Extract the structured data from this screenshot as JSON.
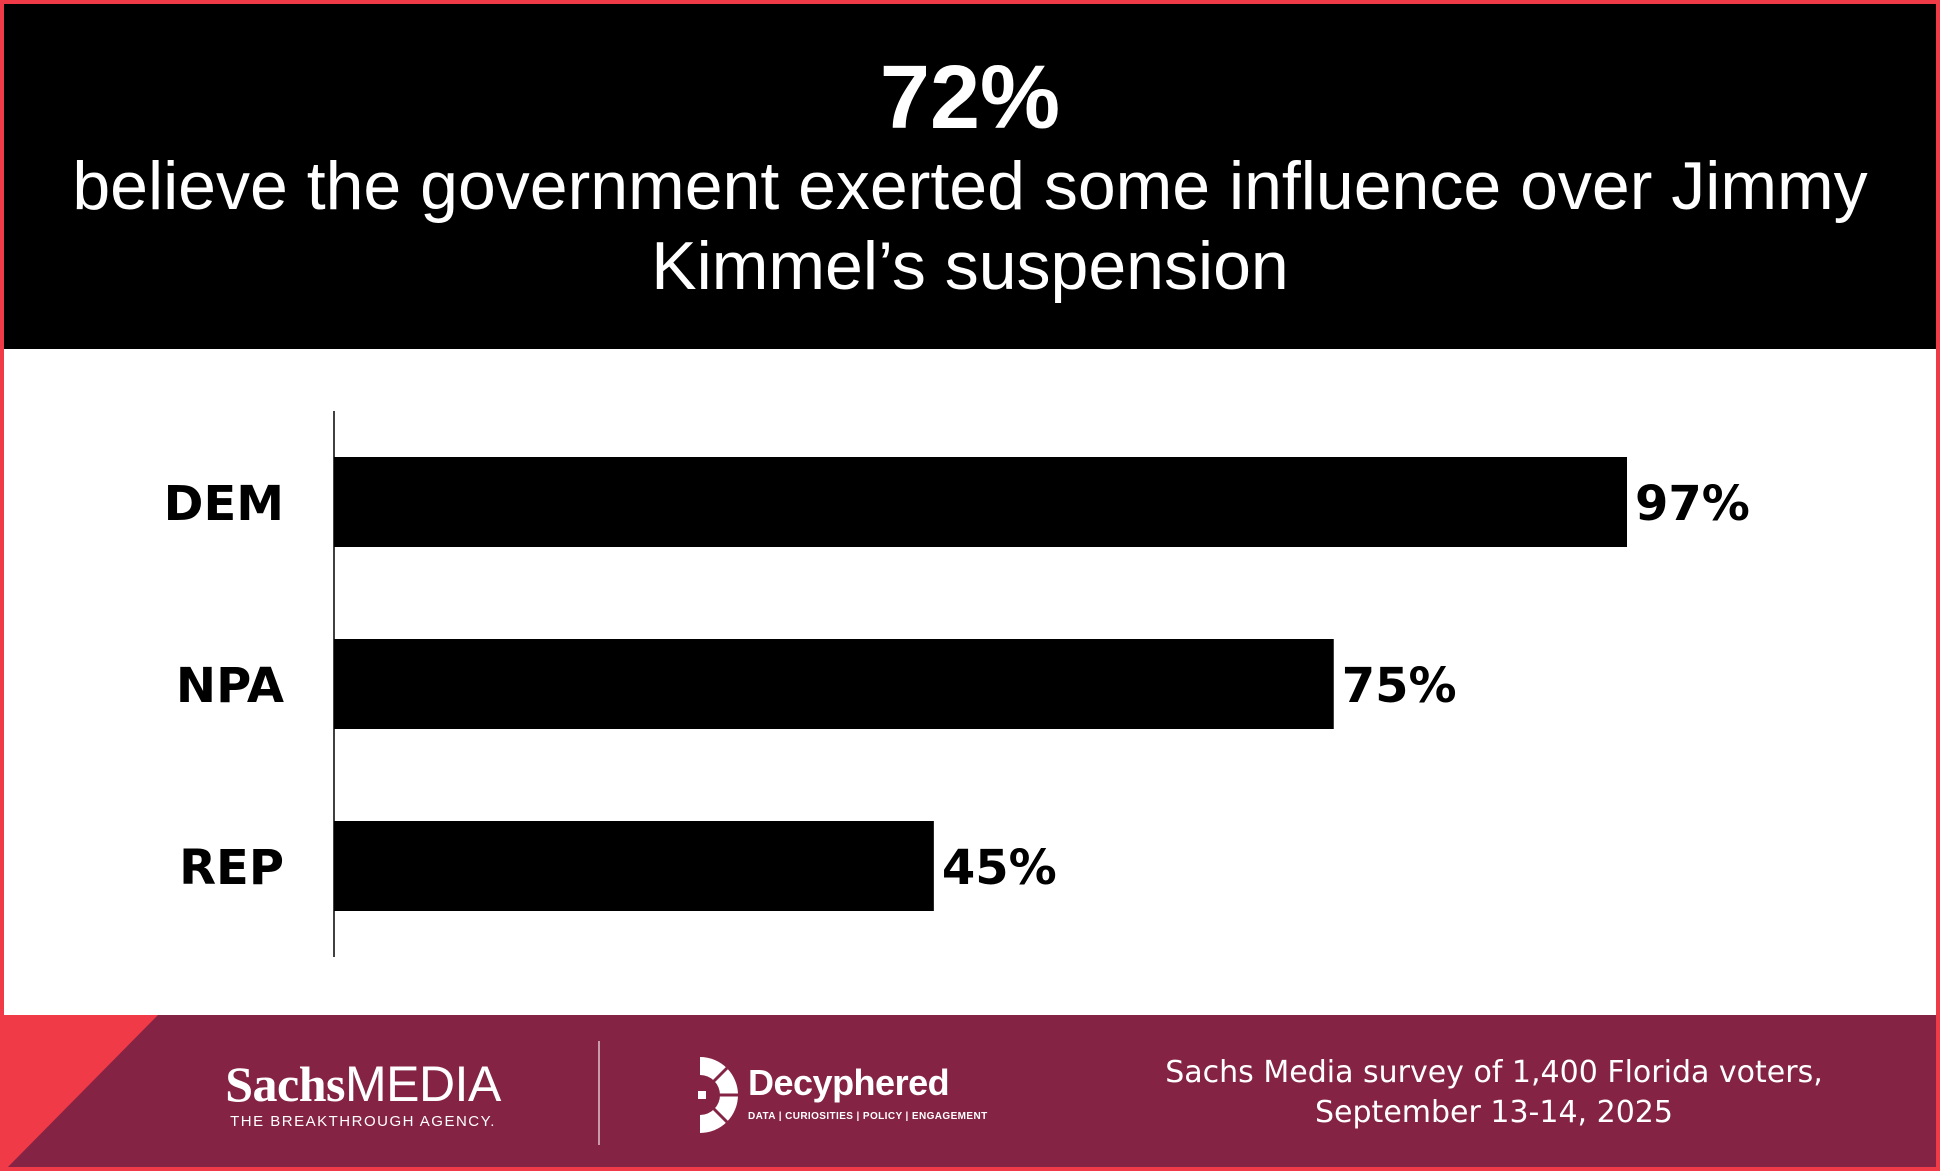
{
  "header": {
    "headline": "72%",
    "subline": "believe the government exerted some influence over Jimmy Kimmel’s suspension"
  },
  "chart_data": {
    "type": "bar",
    "orientation": "horizontal",
    "title": "",
    "xlabel": "",
    "ylabel": "",
    "categories": [
      "DEM",
      "NPA",
      "REP"
    ],
    "values": [
      97,
      75,
      45
    ],
    "value_labels": [
      "97%",
      "75%",
      "45%"
    ],
    "xlim": [
      0,
      100
    ],
    "grid": false,
    "legend": "none",
    "bar_color": "#000000"
  },
  "footer": {
    "sachs_bold": "Sachs",
    "sachs_light": "MEDIA",
    "sachs_tagline": "THE BREAKTHROUGH AGENCY.",
    "decyphered_name": "Decyphered",
    "decyphered_tagline": "DATA | CURIOSITIES | POLICY | ENGAGEMENT",
    "source": "Sachs Media survey of 1,400 Florida voters, September 13-14, 2025"
  },
  "colors": {
    "border": "#f03a47",
    "footer_bg": "#842343",
    "header_bg": "#000000",
    "accent": "#f03a47"
  }
}
